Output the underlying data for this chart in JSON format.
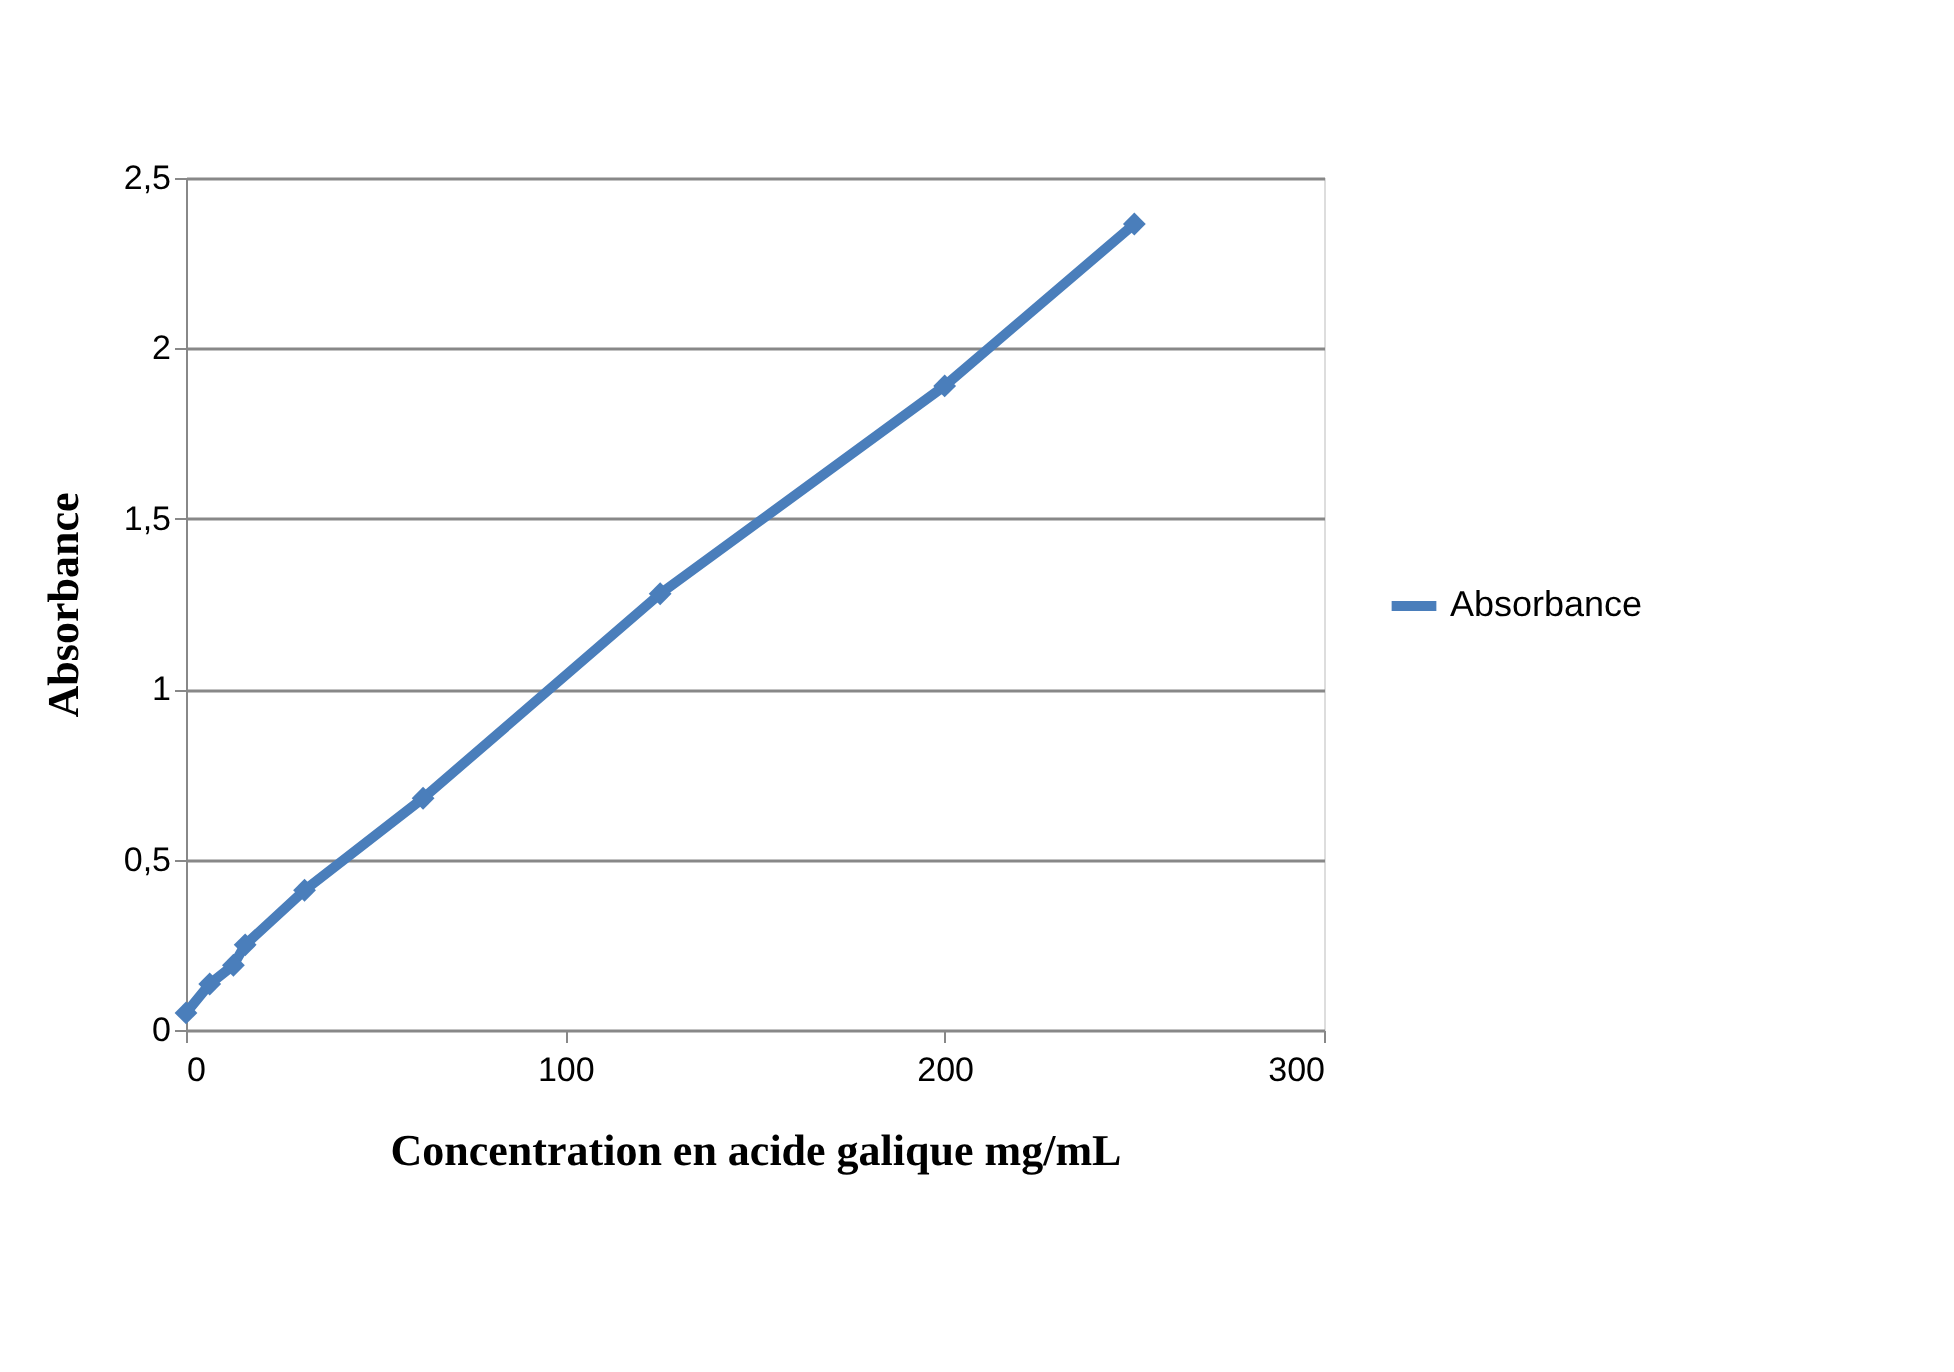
{
  "chart_data": {
    "type": "line",
    "xlabel": "Concentration en acide galique mg/mL",
    "ylabel": "Absorbance",
    "x": [
      0,
      6.25,
      12.5,
      15.6,
      31.25,
      62.5,
      125,
      200,
      250
    ],
    "series": [
      {
        "name": "Absorbance",
        "color": "#4a7ebb",
        "values": [
          0.05,
          0.135,
          0.19,
          0.25,
          0.41,
          0.68,
          1.28,
          1.89,
          2.365
        ]
      }
    ],
    "xlim": [
      0,
      300
    ],
    "xticks": [
      0,
      100,
      200,
      300
    ],
    "ylim": [
      0,
      2.5
    ],
    "yticks": [
      {
        "value": 0,
        "label": "0"
      },
      {
        "value": 0.5,
        "label": "0,5"
      },
      {
        "value": 1,
        "label": "1"
      },
      {
        "value": 1.5,
        "label": "1,5"
      },
      {
        "value": 2,
        "label": "2"
      },
      {
        "value": 2.5,
        "label": "2,5"
      }
    ],
    "grid": "y",
    "legend": "right",
    "marker": "diamond",
    "line_style": "solid"
  }
}
